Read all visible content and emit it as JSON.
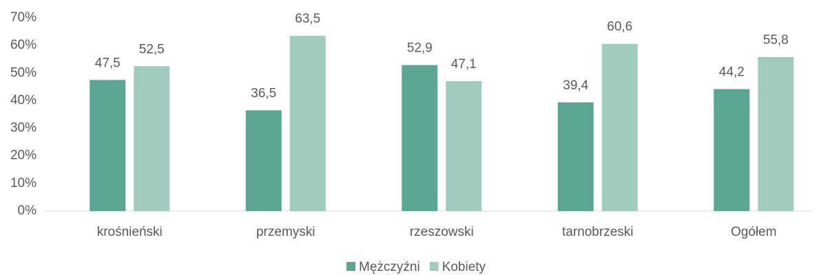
{
  "chart_data": {
    "type": "bar",
    "categories": [
      "krośnieński",
      "przemyski",
      "rzeszowski",
      "tarnobrzeski",
      "Ogółem"
    ],
    "series": [
      {
        "name": "Mężczyźni",
        "color": "#5ba593",
        "values": [
          47.5,
          36.5,
          52.9,
          39.4,
          44.2
        ],
        "value_labels": [
          "47,5",
          "36,5",
          "52,9",
          "39,4",
          "44,2"
        ]
      },
      {
        "name": "Kobiety",
        "color": "#a2cbbf",
        "values": [
          52.5,
          63.5,
          47.1,
          60.6,
          55.8
        ],
        "value_labels": [
          "52,5",
          "63,5",
          "47,1",
          "60,6",
          "55,8"
        ]
      }
    ],
    "ylim": [
      0,
      70
    ],
    "yticks": [
      {
        "value": 0,
        "label": "0%"
      },
      {
        "value": 10,
        "label": "10%"
      },
      {
        "value": 20,
        "label": "20%"
      },
      {
        "value": 30,
        "label": "30%"
      },
      {
        "value": 40,
        "label": "40%"
      },
      {
        "value": 50,
        "label": "50%"
      },
      {
        "value": 60,
        "label": "60%"
      },
      {
        "value": 70,
        "label": "70%"
      }
    ],
    "grid": false,
    "legend": "bottom"
  }
}
